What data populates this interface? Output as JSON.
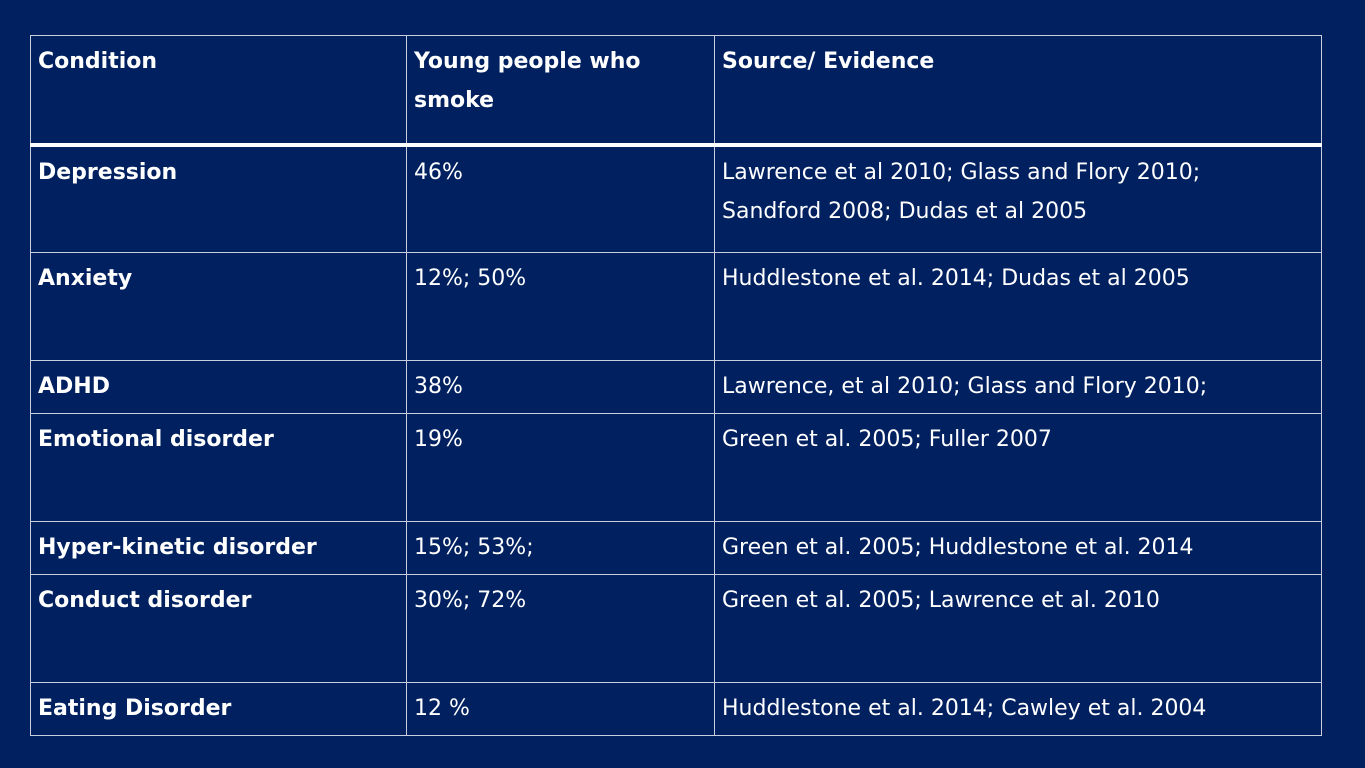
{
  "table": {
    "headers": {
      "condition": "Condition",
      "smokers": "Young people who smoke",
      "source": "Source/ Evidence"
    },
    "rows": [
      {
        "condition": "Depression",
        "smokers": "46%",
        "source_line1": "Lawrence et al 2010; Glass and Flory 2010;",
        "source_line2": "Sandford 2008; Dudas et al 2005"
      },
      {
        "condition": "Anxiety",
        "smokers": "12%; 50%",
        "source_line1": "Huddlestone et al. 2014; Dudas et al 2005",
        "source_line2": ""
      },
      {
        "condition": "ADHD",
        "smokers": "38%",
        "source_line1": "Lawrence, et al 2010; Glass and Flory 2010;",
        "source_line2": ""
      },
      {
        "condition": "Emotional disorder",
        "smokers": "19%",
        "source_line1": "Green et al. 2005; Fuller 2007",
        "source_line2": ""
      },
      {
        "condition": "Hyper-kinetic disorder",
        "smokers": "15%; 53%;",
        "source_line1": "Green et al. 2005; Huddlestone et al. 2014",
        "source_line2": ""
      },
      {
        "condition": "Conduct disorder",
        "smokers": "30%; 72%",
        "source_line1": "Green et al. 2005; Lawrence et al. 2010",
        "source_line2": ""
      },
      {
        "condition": "Eating Disorder",
        "smokers": "12 %",
        "source_line1": "Huddlestone et al. 2014; Cawley et al. 2004",
        "source_line2": ""
      }
    ]
  },
  "colors": {
    "background": "#002060",
    "text": "#ffffff",
    "border": "#c8cee0"
  }
}
